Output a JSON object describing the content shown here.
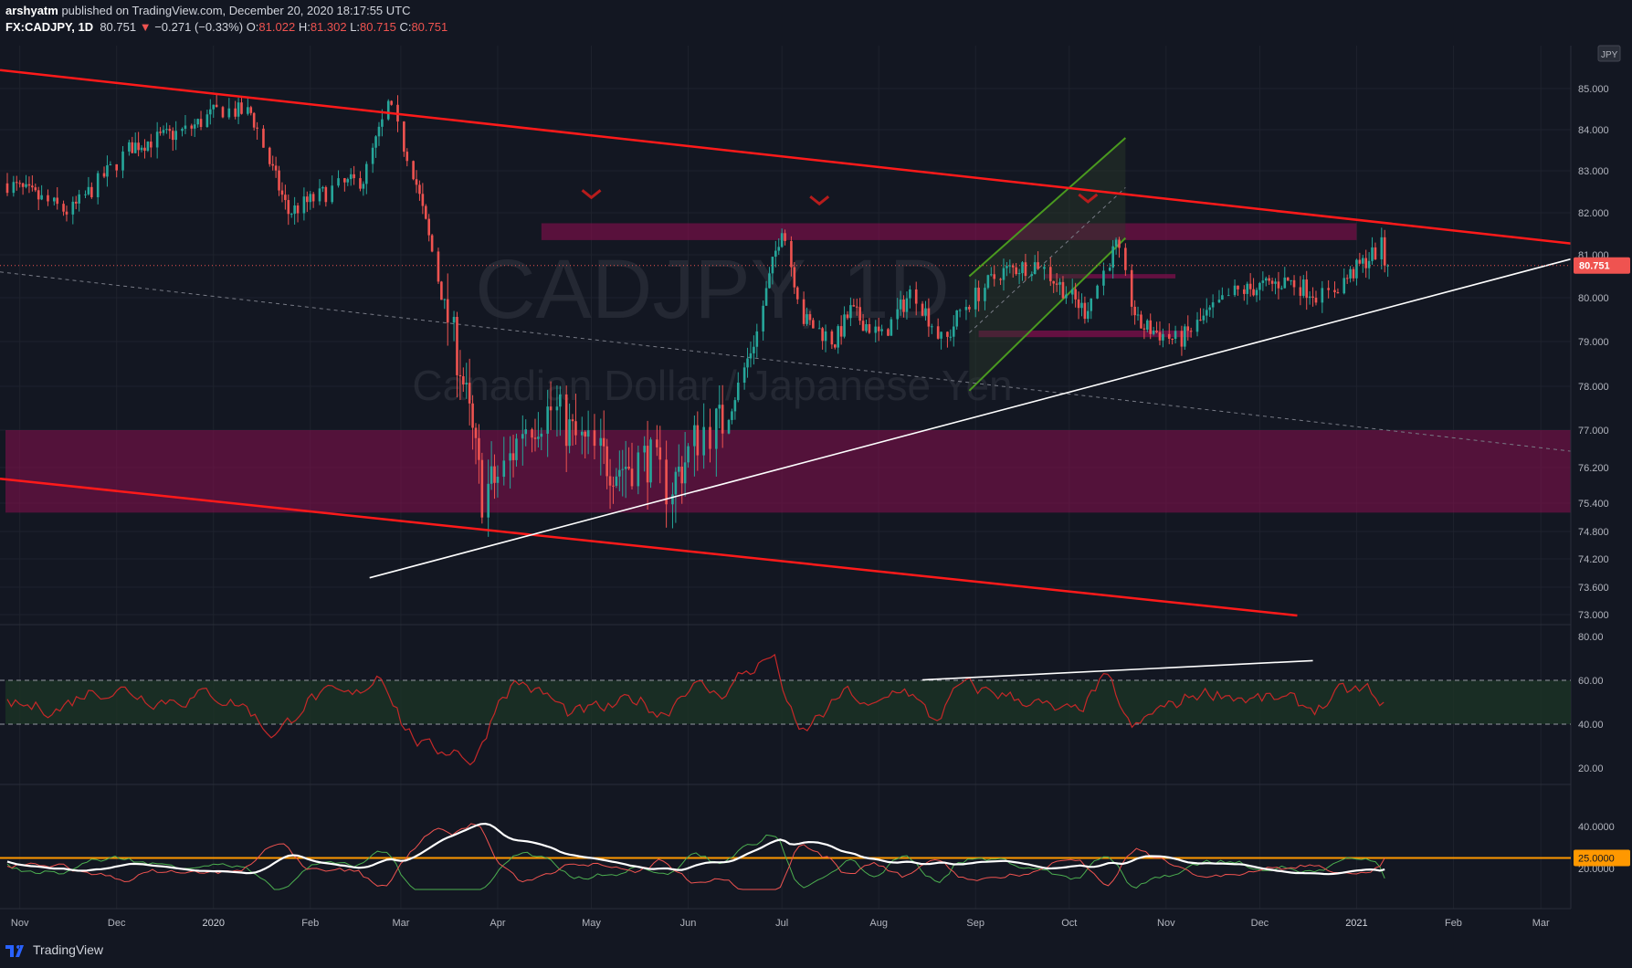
{
  "header": {
    "author": "arshyatm",
    "published": "published on TradingView.com, December 20, 2020 18:17:55 UTC",
    "symbol": "FX:CADJPY, 1D",
    "last": "80.751",
    "change": "−0.271 (−0.33%)",
    "o_label": "O:",
    "o_value": "81.022",
    "h_label": "H:",
    "h_value": "81.302",
    "l_label": "L:",
    "l_value": "80.715",
    "c_label": "C:",
    "c_value": "80.751"
  },
  "footer": {
    "brand": "TradingView"
  },
  "watermark": {
    "symbol": "CADJPY, 1D",
    "name": "Canadian Dollar / Japanese Yen"
  },
  "colors": {
    "background": "#131722",
    "up": "#26a69a",
    "down": "#ef5350",
    "trendline_red": "#ff1a1a",
    "trendline_white": "#ffffff",
    "zone": "#880e4f",
    "channel": "#4a9a1f",
    "level": "#ff9800"
  },
  "chart_data": [
    {
      "type": "candlestick",
      "symbol": "FX:CADJPY",
      "interval": "1D",
      "currency_label": "JPY",
      "last_price": 80.751,
      "price_axis_ticks": [
        "85.000",
        "84.000",
        "83.000",
        "82.000",
        "81.000",
        "80.000",
        "79.000",
        "78.000",
        "77.000",
        "76.200",
        "75.400",
        "74.800",
        "74.200",
        "73.600",
        "73.000"
      ],
      "x_axis_ticks": [
        "Nov",
        "Dec",
        "2020",
        "Feb",
        "Mar",
        "Apr",
        "May",
        "Jun",
        "Jul",
        "Aug",
        "Sep",
        "Oct",
        "Nov",
        "Dec",
        "2021",
        "Feb",
        "Mar"
      ],
      "approx_closes_by_month": [
        {
          "month": "2019-11",
          "close": 82.6
        },
        {
          "month": "2019-12",
          "close": 83.2
        },
        {
          "month": "2020-01",
          "close": 84.3
        },
        {
          "month": "2020-02",
          "close": 83.0
        },
        {
          "month": "2020-03",
          "close": 75.5
        },
        {
          "month": "2020-04",
          "close": 76.9
        },
        {
          "month": "2020-05",
          "close": 77.0
        },
        {
          "month": "2020-06",
          "close": 79.3
        },
        {
          "month": "2020-07",
          "close": 79.4
        },
        {
          "month": "2020-08",
          "close": 80.3
        },
        {
          "month": "2020-09",
          "close": 79.0
        },
        {
          "month": "2020-10",
          "close": 79.4
        },
        {
          "month": "2020-11",
          "close": 80.0
        },
        {
          "month": "2020-12",
          "close": 80.751
        }
      ],
      "drawings": {
        "resistance_zone": [
          81.35,
          81.75
        ],
        "support_zone": [
          75.2,
          77.0
        ],
        "small_zones": [
          [
            80.45,
            80.55
          ],
          [
            79.1,
            79.25
          ]
        ],
        "turn_markers": [
          "2020-06",
          "2020-09",
          "2020-12"
        ]
      }
    },
    {
      "type": "line",
      "name": "oscillator",
      "ylim": [
        10,
        85
      ],
      "ticks": [
        "80.00",
        "60.00",
        "40.00",
        "20.00"
      ],
      "band": [
        40,
        60
      ],
      "latest": 50
    },
    {
      "type": "line",
      "name": "directional index",
      "ticks": [
        "40.0000",
        "25.0000",
        "20.0000"
      ],
      "level": 25,
      "series_colors": [
        "#ffffff",
        "#ef5350",
        "#4caf50"
      ]
    }
  ]
}
